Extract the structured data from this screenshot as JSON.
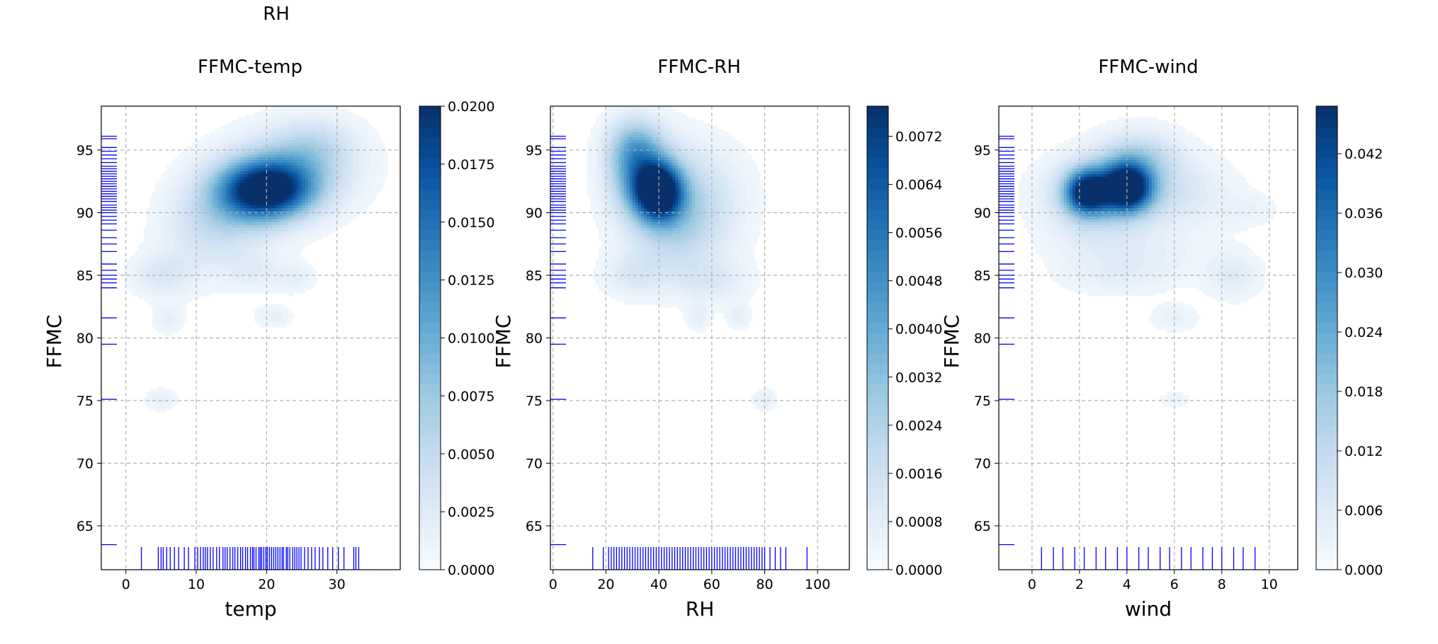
{
  "figure": {
    "suptitle": "RH"
  },
  "colormap": {
    "stops": [
      "#f7fbff",
      "#deebf7",
      "#c6dbef",
      "#9ecae1",
      "#6baed6",
      "#4292c6",
      "#2171b5",
      "#08519c",
      "#08306b"
    ]
  },
  "rug_color": "#0000ff",
  "grid_color": "#b0b0b0",
  "chart_data": [
    {
      "type": "heatmap",
      "title": "FFMC-temp",
      "xlabel": "temp",
      "ylabel": "FFMC",
      "xlim": [
        -3.5,
        39
      ],
      "ylim": [
        61.5,
        98.5
      ],
      "xticks": [
        0,
        10,
        20,
        30
      ],
      "yticks": [
        65,
        70,
        75,
        80,
        85,
        90,
        95
      ],
      "grid": true,
      "colorbar": {
        "min": 0.0,
        "max": 0.02,
        "ticks": [
          0.0,
          0.0025,
          0.005,
          0.0075,
          0.01,
          0.0125,
          0.015,
          0.0175,
          0.02
        ],
        "tick_labels": [
          "0.0000",
          "0.0025",
          "0.0050",
          "0.0075",
          "0.0100",
          "0.0125",
          "0.0150",
          "0.0175",
          "0.0200"
        ]
      },
      "density_peaks": [
        {
          "x": 20,
          "y": 91.8,
          "sx": 4.5,
          "sy": 1.6,
          "value": 0.02
        },
        {
          "x": 24,
          "y": 93.5,
          "sx": 6,
          "sy": 2.2,
          "value": 0.006
        },
        {
          "x": 15,
          "y": 90.2,
          "sx": 5,
          "sy": 2.5,
          "value": 0.005
        },
        {
          "x": 27,
          "y": 95.5,
          "sx": 4,
          "sy": 1.5,
          "value": 0.003
        },
        {
          "x": 10,
          "y": 88,
          "sx": 4,
          "sy": 2.5,
          "value": 0.002
        },
        {
          "x": 5,
          "y": 85,
          "sx": 3,
          "sy": 1.2,
          "value": 0.003
        },
        {
          "x": 18,
          "y": 85.3,
          "sx": 3,
          "sy": 1,
          "value": 0.002
        },
        {
          "x": 24,
          "y": 84.8,
          "sx": 2,
          "sy": 0.8,
          "value": 0.002
        },
        {
          "x": 6,
          "y": 81.5,
          "sx": 1.5,
          "sy": 0.8,
          "value": 0.002
        },
        {
          "x": 21,
          "y": 81.7,
          "sx": 1.8,
          "sy": 0.6,
          "value": 0.002
        },
        {
          "x": 5,
          "y": 75.1,
          "sx": 1.5,
          "sy": 0.6,
          "value": 0.002
        }
      ],
      "rug_x": [
        2.2,
        4.6,
        5.0,
        5.3,
        5.8,
        6.3,
        6.9,
        7.5,
        8.3,
        8.9,
        9.8,
        10.2,
        10.6,
        11.0,
        11.3,
        11.6,
        12.0,
        12.4,
        12.9,
        13.3,
        13.8,
        14.1,
        14.4,
        14.8,
        15.2,
        15.5,
        15.9,
        16.3,
        16.6,
        17.0,
        17.3,
        17.7,
        18.0,
        18.2,
        18.5,
        18.9,
        19.1,
        19.3,
        19.6,
        19.9,
        20.1,
        20.4,
        20.7,
        21.0,
        21.3,
        21.6,
        21.9,
        22.2,
        22.4,
        22.8,
        23.0,
        23.3,
        23.7,
        24.0,
        24.3,
        24.6,
        24.9,
        25.4,
        25.9,
        26.4,
        26.9,
        27.5,
        28.0,
        28.7,
        29.4,
        30.2,
        31.0,
        32.4,
        32.7,
        33.1
      ],
      "rug_y": [
        63.5,
        75.1,
        79.5,
        81.6,
        84.0,
        84.4,
        84.7,
        85.0,
        85.4,
        85.9,
        86.9,
        87.5,
        88.0,
        88.6,
        89.1,
        89.4,
        89.7,
        90.0,
        90.2,
        90.4,
        90.6,
        90.9,
        91.1,
        91.3,
        91.5,
        91.7,
        91.9,
        92.1,
        92.3,
        92.5,
        92.7,
        92.9,
        93.1,
        93.3,
        93.5,
        93.7,
        94.0,
        94.3,
        94.6,
        94.9,
        95.2,
        95.9,
        96.1
      ]
    },
    {
      "type": "heatmap",
      "title": "FFMC-RH",
      "xlabel": "RH",
      "ylabel": "FFMC",
      "xlim": [
        -1,
        112
      ],
      "ylim": [
        61.5,
        98.5
      ],
      "xticks": [
        0,
        20,
        40,
        60,
        80,
        100
      ],
      "yticks": [
        65,
        70,
        75,
        80,
        85,
        90,
        95
      ],
      "grid": true,
      "colorbar": {
        "min": 0.0,
        "max": 0.0077,
        "ticks": [
          0.0,
          0.0008,
          0.0016,
          0.0024,
          0.0032,
          0.004,
          0.0048,
          0.0056,
          0.0064,
          0.0072
        ],
        "tick_labels": [
          "0.0000",
          "0.0008",
          "0.0016",
          "0.0024",
          "0.0032",
          "0.0040",
          "0.0048",
          "0.0056",
          "0.0064",
          "0.0072"
        ]
      },
      "density_peaks": [
        {
          "x": 40,
          "y": 91.6,
          "sx": 6,
          "sy": 1.5,
          "value": 0.0077
        },
        {
          "x": 33,
          "y": 93.2,
          "sx": 8,
          "sy": 2.2,
          "value": 0.004
        },
        {
          "x": 50,
          "y": 91,
          "sx": 14,
          "sy": 3,
          "value": 0.0022
        },
        {
          "x": 30,
          "y": 95.5,
          "sx": 7,
          "sy": 1.6,
          "value": 0.002
        },
        {
          "x": 45,
          "y": 88,
          "sx": 12,
          "sy": 2.5,
          "value": 0.0012
        },
        {
          "x": 30,
          "y": 85,
          "sx": 8,
          "sy": 1.2,
          "value": 0.001
        },
        {
          "x": 60,
          "y": 84.5,
          "sx": 10,
          "sy": 1.2,
          "value": 0.001
        },
        {
          "x": 55,
          "y": 81.6,
          "sx": 3,
          "sy": 0.7,
          "value": 0.0008
        },
        {
          "x": 70,
          "y": 81.7,
          "sx": 3,
          "sy": 0.7,
          "value": 0.0008
        },
        {
          "x": 80,
          "y": 75.1,
          "sx": 3,
          "sy": 0.6,
          "value": 0.0008
        }
      ],
      "rug_x": [
        15,
        19,
        21,
        22,
        23,
        24,
        25,
        26,
        27,
        28,
        29,
        30,
        31,
        32,
        33,
        34,
        35,
        36,
        37,
        38,
        39,
        40,
        41,
        42,
        43,
        44,
        45,
        46,
        47,
        48,
        49,
        50,
        51,
        52,
        53,
        54,
        55,
        56,
        57,
        58,
        59,
        60,
        61,
        62,
        63,
        64,
        65,
        66,
        67,
        68,
        69,
        70,
        71,
        72,
        73,
        74,
        75,
        76,
        77,
        78,
        79,
        80,
        82,
        84,
        86,
        88,
        96
      ],
      "rug_y": [
        63.5,
        75.1,
        79.5,
        81.6,
        84.0,
        84.4,
        84.7,
        85.0,
        85.4,
        85.9,
        86.9,
        87.5,
        88.0,
        88.6,
        89.1,
        89.4,
        89.7,
        90.0,
        90.2,
        90.4,
        90.6,
        90.9,
        91.1,
        91.3,
        91.5,
        91.7,
        91.9,
        92.1,
        92.3,
        92.5,
        92.7,
        92.9,
        93.1,
        93.3,
        93.5,
        93.7,
        94.0,
        94.3,
        94.6,
        94.9,
        95.2,
        95.9,
        96.1
      ]
    },
    {
      "type": "heatmap",
      "title": "FFMC-wind",
      "xlabel": "wind",
      "ylabel": "FFMC",
      "xlim": [
        -1.4,
        11.2
      ],
      "ylim": [
        61.5,
        98.5
      ],
      "xticks": [
        0,
        2,
        4,
        6,
        8,
        10
      ],
      "yticks": [
        65,
        70,
        75,
        80,
        85,
        90,
        95
      ],
      "grid": true,
      "colorbar": {
        "min": 0.0,
        "max": 0.0468,
        "ticks": [
          0.0,
          0.006,
          0.012,
          0.018,
          0.024,
          0.03,
          0.036,
          0.042
        ],
        "tick_labels": [
          "0.000",
          "0.006",
          "0.012",
          "0.018",
          "0.024",
          "0.030",
          "0.036",
          "0.042"
        ]
      },
      "density_peaks": [
        {
          "x": 2.3,
          "y": 91.6,
          "sx": 0.6,
          "sy": 1.2,
          "value": 0.04
        },
        {
          "x": 4.0,
          "y": 92.0,
          "sx": 0.7,
          "sy": 1.3,
          "value": 0.045
        },
        {
          "x": 3.2,
          "y": 91.8,
          "sx": 1.6,
          "sy": 1.8,
          "value": 0.02
        },
        {
          "x": 4.5,
          "y": 94.5,
          "sx": 1.2,
          "sy": 1.5,
          "value": 0.012
        },
        {
          "x": 6.5,
          "y": 91.5,
          "sx": 1.5,
          "sy": 2,
          "value": 0.006
        },
        {
          "x": 2.5,
          "y": 88.5,
          "sx": 1.5,
          "sy": 2.2,
          "value": 0.005
        },
        {
          "x": 5.0,
          "y": 86.5,
          "sx": 1.8,
          "sy": 1.5,
          "value": 0.004
        },
        {
          "x": 8.5,
          "y": 85.0,
          "sx": 0.8,
          "sy": 1.3,
          "value": 0.006
        },
        {
          "x": 3.5,
          "y": 84.8,
          "sx": 1.5,
          "sy": 1.0,
          "value": 0.003
        },
        {
          "x": 6.0,
          "y": 81.6,
          "sx": 0.7,
          "sy": 0.8,
          "value": 0.004
        },
        {
          "x": 6.0,
          "y": 75.1,
          "sx": 0.5,
          "sy": 0.5,
          "value": 0.003
        },
        {
          "x": 9.2,
          "y": 90.2,
          "sx": 0.8,
          "sy": 0.9,
          "value": 0.003
        }
      ],
      "rug_x": [
        0.4,
        0.9,
        1.3,
        1.8,
        2.2,
        2.7,
        3.1,
        3.6,
        4.0,
        4.5,
        4.9,
        5.4,
        5.8,
        6.3,
        6.7,
        7.2,
        7.6,
        8.0,
        8.5,
        8.9,
        9.4
      ],
      "rug_y": [
        63.5,
        75.1,
        79.5,
        81.6,
        84.0,
        84.4,
        84.7,
        85.0,
        85.4,
        85.9,
        86.9,
        87.5,
        88.0,
        88.6,
        89.1,
        89.4,
        89.7,
        90.0,
        90.2,
        90.4,
        90.6,
        90.9,
        91.1,
        91.3,
        91.5,
        91.7,
        91.9,
        92.1,
        92.3,
        92.5,
        92.7,
        92.9,
        93.1,
        93.3,
        93.5,
        93.7,
        94.0,
        94.3,
        94.6,
        94.9,
        95.2,
        95.9,
        96.1
      ]
    }
  ]
}
